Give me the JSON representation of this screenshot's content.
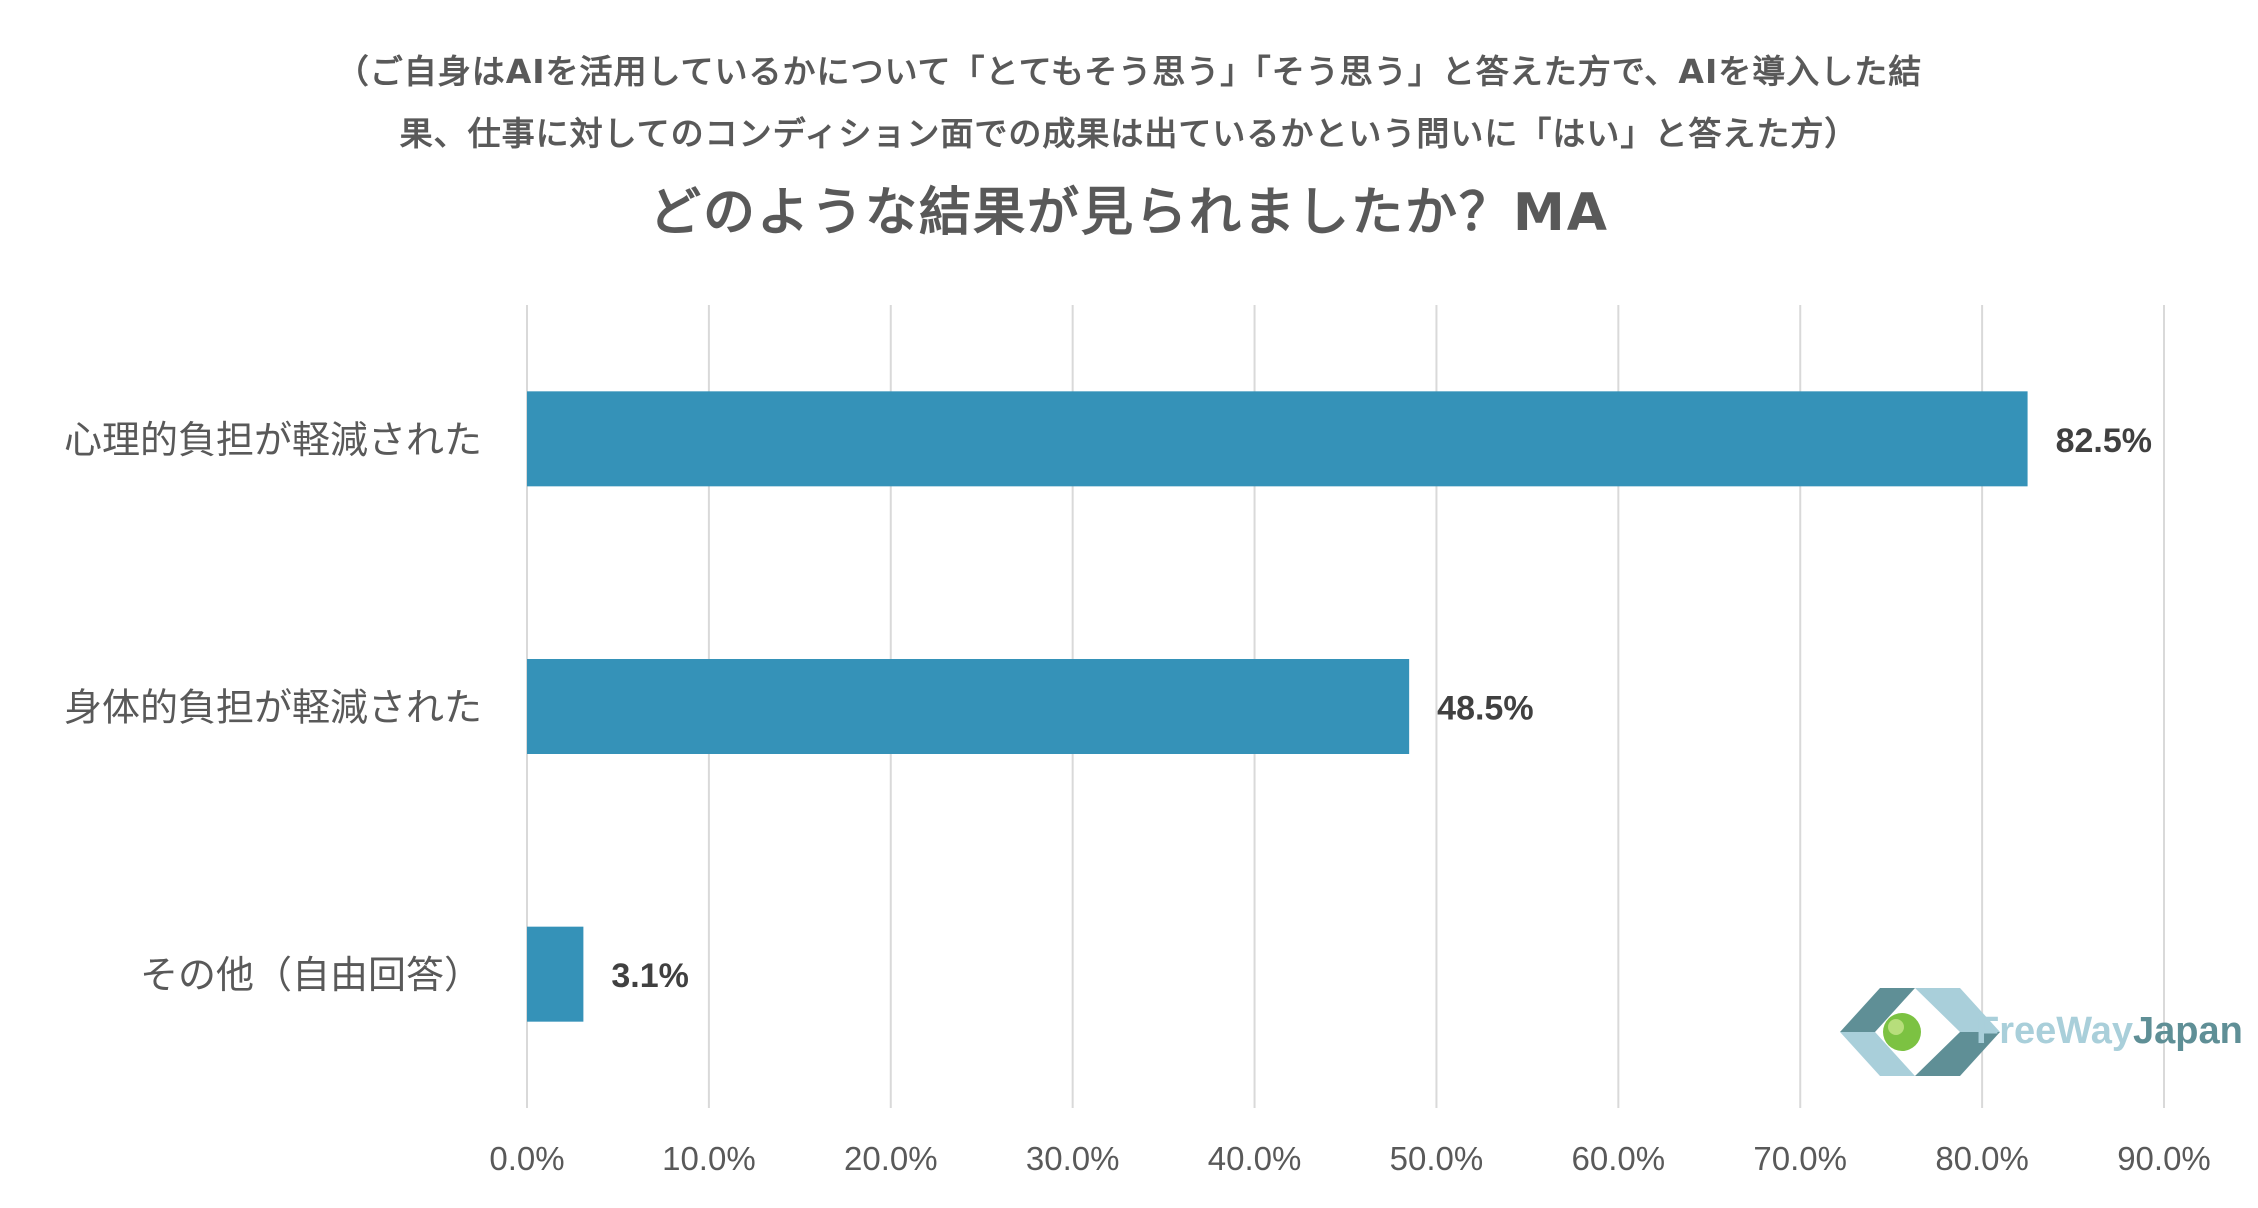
{
  "header": {
    "subtitle_line1": "（ご自身はAIを活用しているかについて「とてもそう思う」「そう思う」と答えた方で、AIを導入した結",
    "subtitle_line2": "果、仕事に対してのコンディション面での成果は出ているかという問いに「はい」と答えた方）",
    "title": "どのような結果が見られましたか？MA"
  },
  "chart_data": {
    "type": "bar",
    "orientation": "horizontal",
    "categories": [
      "心理的負担が軽減された",
      "身体的負担が軽減された",
      "その他（自由回答）"
    ],
    "values": [
      82.5,
      48.5,
      3.1
    ],
    "value_labels": [
      "82.5%",
      "48.5%",
      "3.1%"
    ],
    "xlim": [
      0,
      90
    ],
    "x_ticks": [
      0,
      10,
      20,
      30,
      40,
      50,
      60,
      70,
      80,
      90
    ],
    "x_tick_labels": [
      "0.0%",
      "10.0%",
      "20.0%",
      "30.0%",
      "40.0%",
      "50.0%",
      "60.0%",
      "70.0%",
      "80.0%",
      "90.0%"
    ],
    "grid": true,
    "bar_color": "#3592b8",
    "grid_color": "#d9d9d9"
  },
  "logo": {
    "text_part1": "FreeWay",
    "text_part2": "Japan",
    "color_part1": "#a9cfda",
    "color_part2": "#5f8f96"
  }
}
